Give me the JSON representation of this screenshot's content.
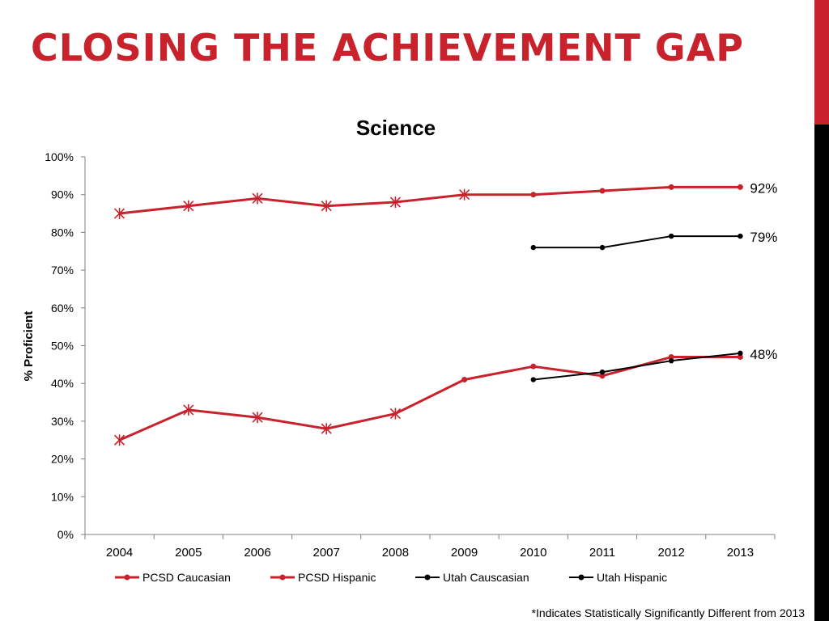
{
  "slide": {
    "title": "CLOSING THE ACHIEVEMENT GAP",
    "footnote": "*Indicates Statistically Significantly Different from 2013"
  },
  "colors": {
    "accent_red": "#c8232c",
    "black": "#000000"
  },
  "chart_data": {
    "type": "line",
    "title": "Science",
    "ylabel": "% Proficient",
    "xlabel": "",
    "ylim": [
      0,
      100
    ],
    "y_ticks": [
      "0%",
      "10%",
      "20%",
      "30%",
      "40%",
      "50%",
      "60%",
      "70%",
      "80%",
      "90%",
      "100%"
    ],
    "categories": [
      "2004",
      "2005",
      "2006",
      "2007",
      "2008",
      "2009",
      "2010",
      "2011",
      "2012",
      "2013"
    ],
    "legend_position": "bottom",
    "grid": false,
    "series": [
      {
        "name": "PCSD Caucasian",
        "color": "#c8232c",
        "values": [
          85,
          87,
          89,
          87,
          88,
          90,
          90,
          91,
          92,
          92
        ],
        "markers": [
          "star",
          "star",
          "star",
          "star",
          "star",
          "star",
          "dot",
          "dot",
          "dot",
          "dot"
        ]
      },
      {
        "name": "PCSD Hispanic",
        "color": "#c8232c",
        "values": [
          25,
          33,
          31,
          28,
          32,
          41,
          44.5,
          42,
          47,
          47
        ],
        "markers": [
          "star",
          "star",
          "star",
          "star",
          "star",
          "dot",
          "dot",
          "dot",
          "dot",
          "dot"
        ]
      },
      {
        "name": "Utah Causcasian",
        "color": "#000000",
        "values": [
          null,
          null,
          null,
          null,
          null,
          null,
          76,
          76,
          79,
          79
        ],
        "markers": [
          "dot",
          "dot",
          "dot",
          "dot",
          "dot",
          "dot",
          "dot",
          "dot",
          "dot",
          "dot"
        ]
      },
      {
        "name": "Utah Hispanic",
        "color": "#000000",
        "values": [
          null,
          null,
          null,
          null,
          null,
          null,
          41,
          43,
          46,
          48
        ],
        "markers": [
          "dot",
          "dot",
          "dot",
          "dot",
          "dot",
          "dot",
          "dot",
          "dot",
          "dot",
          "dot"
        ]
      }
    ],
    "annotations": [
      "92%",
      "79%",
      "48%"
    ],
    "annotation_values": [
      92,
      79,
      48
    ]
  }
}
